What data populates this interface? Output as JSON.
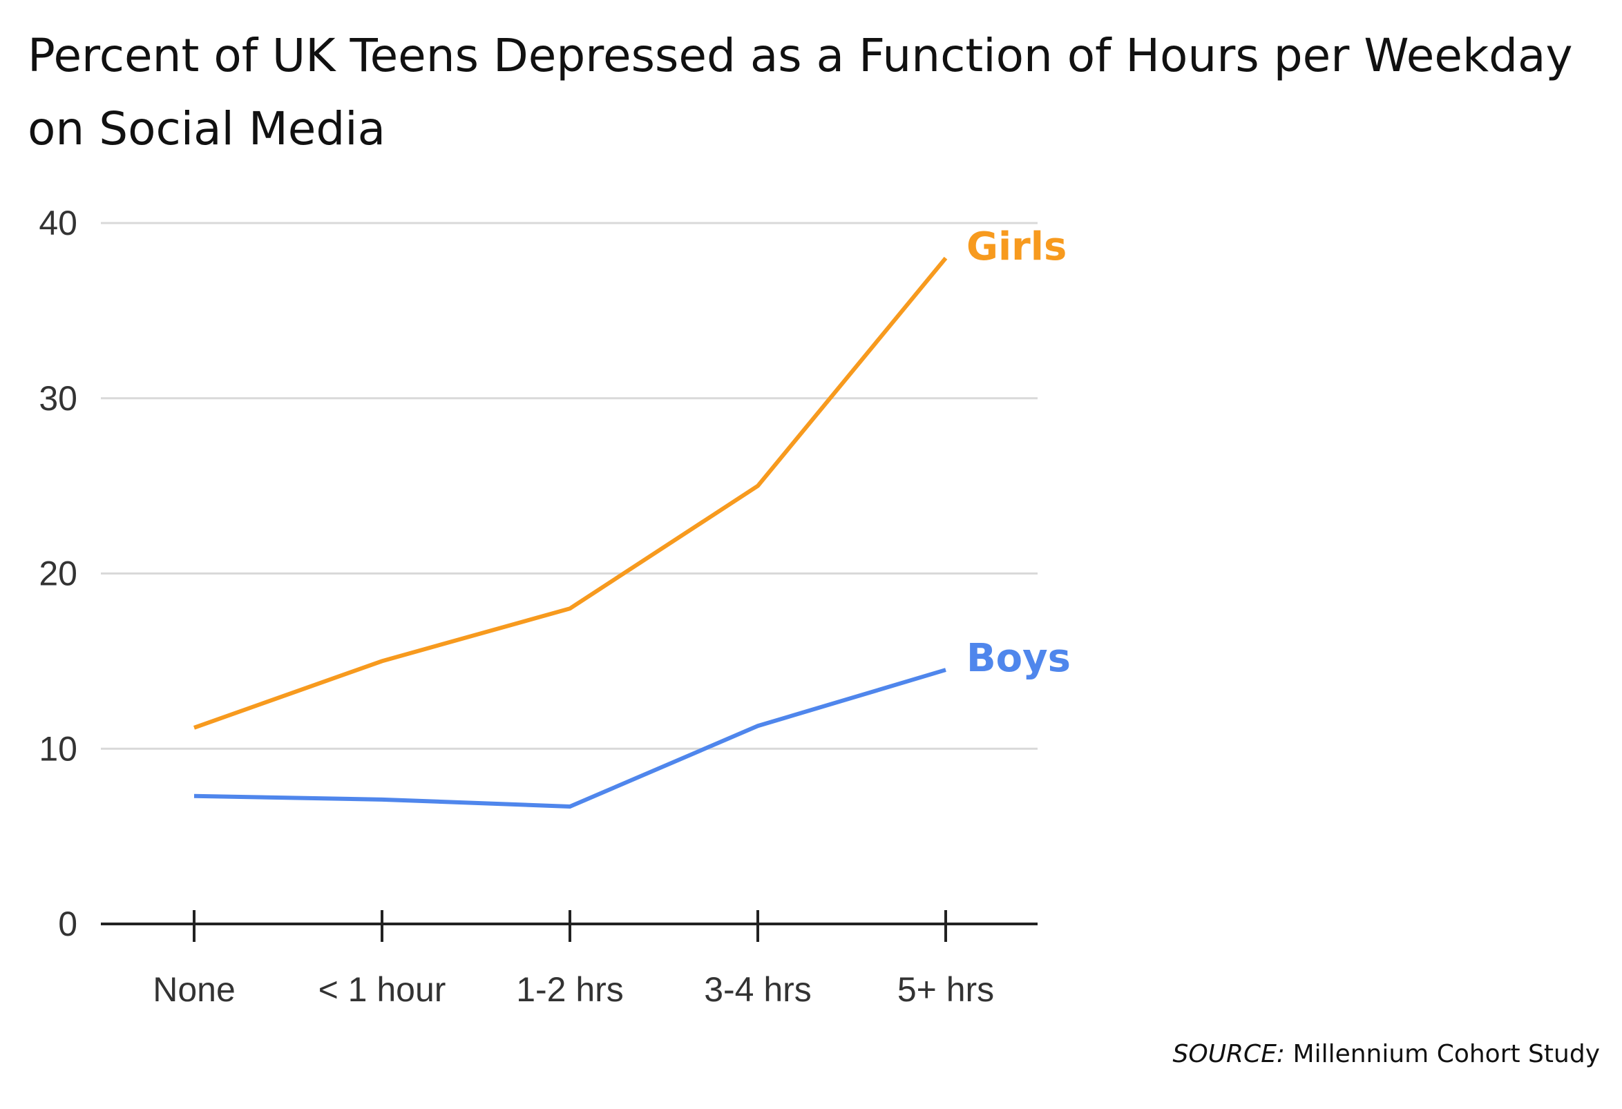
{
  "chart_data": {
    "type": "line",
    "title": "Percent of UK Teens Depressed as a Function of Hours per Weekday on Social Media",
    "xlabel": "",
    "ylabel": "",
    "categories": [
      "None",
      "< 1 hour",
      "1-2 hrs",
      "3-4 hrs",
      "5+ hrs"
    ],
    "ylim": [
      0,
      40
    ],
    "yticks": [
      0,
      10,
      20,
      30,
      40
    ],
    "grid": true,
    "series": [
      {
        "name": "Girls",
        "color": "#F79A1E",
        "values": [
          11.2,
          15.0,
          18.0,
          25.0,
          38.0
        ]
      },
      {
        "name": "Boys",
        "color": "#4F86EC",
        "values": [
          7.3,
          7.1,
          6.7,
          11.3,
          14.5
        ]
      }
    ],
    "source_label": "SOURCE:",
    "source_text": "Millennium Cohort Study"
  }
}
